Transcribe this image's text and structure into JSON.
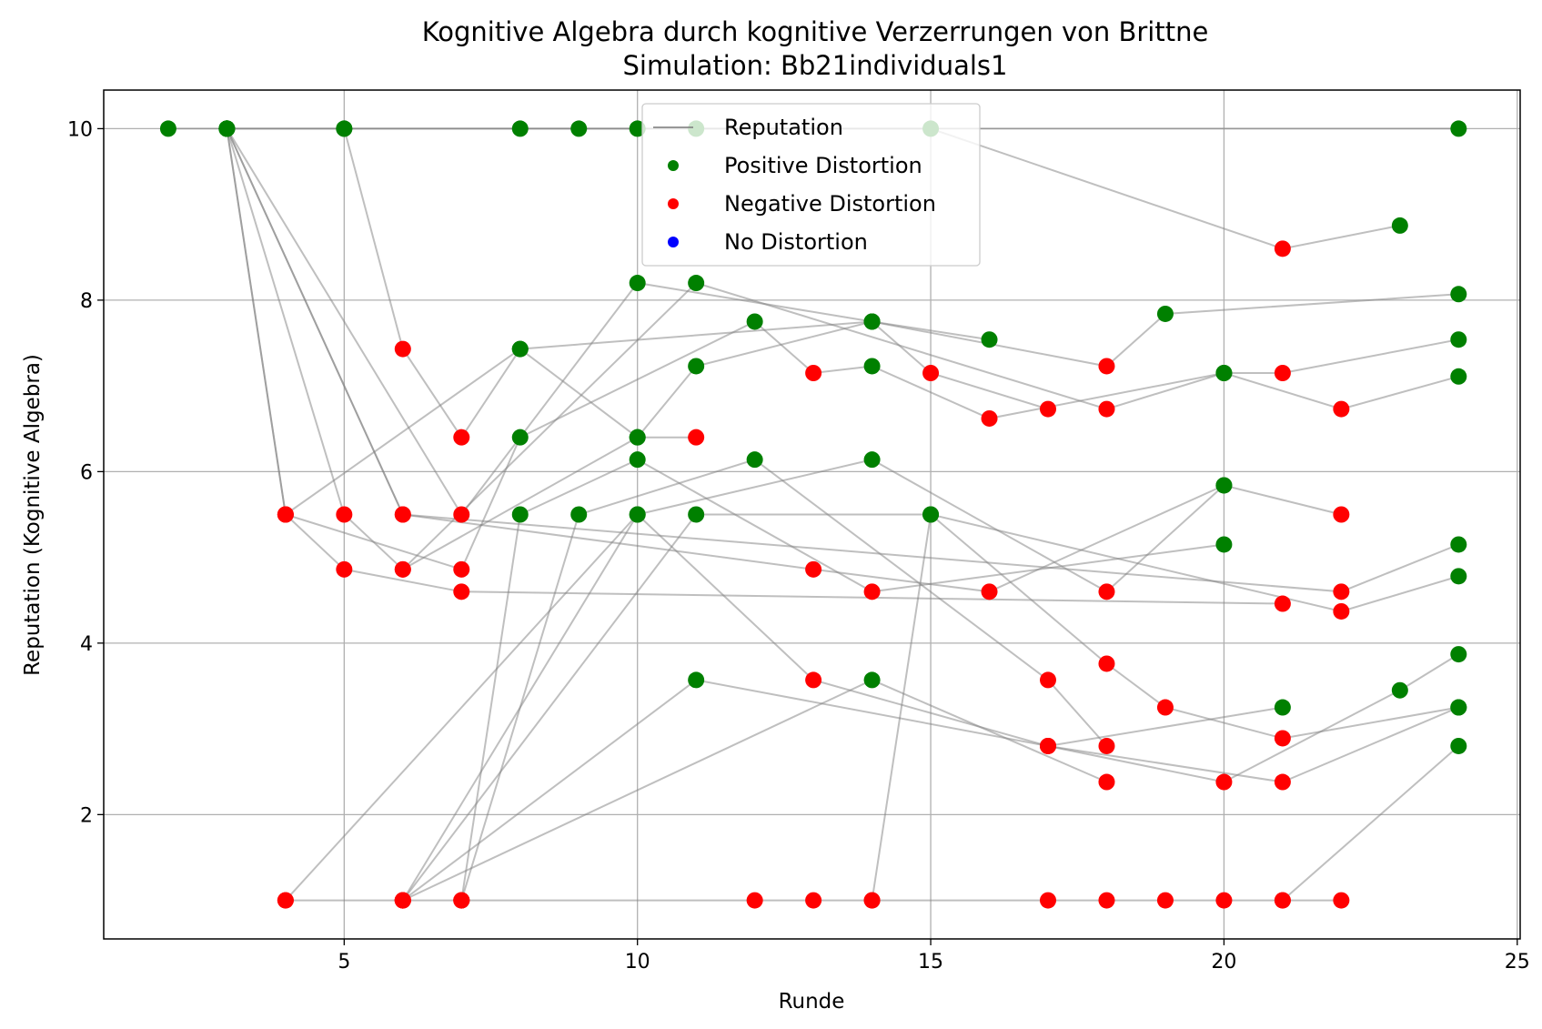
{
  "chart_data": {
    "type": "scatter",
    "title": "Kognitive Algebra durch kognitive Verzerrungen von Brittne",
    "subtitle": "Simulation: Bb21individuals1",
    "xlabel": "Runde",
    "ylabel": "Reputation (Kognitive Algebra)",
    "xlim": [
      0.9,
      25.05
    ],
    "ylim": [
      0.55,
      10.45
    ],
    "xticks": [
      5,
      10,
      15,
      20,
      25
    ],
    "yticks": [
      2,
      4,
      6,
      8,
      10
    ],
    "xtick_labels": [
      "5",
      "10",
      "15",
      "20",
      "25"
    ],
    "ytick_labels": [
      "2",
      "4",
      "6",
      "8",
      "10"
    ],
    "grid": true,
    "legend_position": "upper-center",
    "legend": [
      {
        "label": "Reputation",
        "kind": "line",
        "color": "#808080"
      },
      {
        "label": "Positive Distortion",
        "kind": "marker",
        "color": "#008000"
      },
      {
        "label": "Negative Distortion",
        "kind": "marker",
        "color": "#ff0000"
      },
      {
        "label": "No Distortion",
        "kind": "marker",
        "color": "#0000ff"
      }
    ],
    "colors": {
      "positive": "#008000",
      "negative": "#ff0000",
      "none": "#0000ff",
      "line": "#808080"
    },
    "series": [
      {
        "points": [
          [
            2,
            10,
            "p"
          ],
          [
            3,
            10,
            "p"
          ],
          [
            24,
            10,
            "p"
          ]
        ]
      },
      {
        "points": [
          [
            3,
            10,
            "p"
          ],
          [
            5,
            10,
            "p"
          ],
          [
            8,
            10,
            "p"
          ],
          [
            9,
            10,
            "p"
          ],
          [
            10,
            10,
            "p"
          ],
          [
            11,
            10,
            "p"
          ],
          [
            15,
            10,
            "p"
          ],
          [
            21,
            8.6,
            "n"
          ],
          [
            23,
            8.87,
            "p"
          ]
        ]
      },
      {
        "points": [
          [
            3,
            10,
            "p"
          ],
          [
            4,
            5.5,
            "n"
          ],
          [
            8,
            7.43,
            "p"
          ],
          [
            14,
            7.75,
            "p"
          ],
          [
            15,
            7.15,
            "n"
          ],
          [
            17,
            6.73,
            "n"
          ]
        ]
      },
      {
        "points": [
          [
            3,
            10,
            "p"
          ],
          [
            4,
            5.5,
            "n"
          ],
          [
            5,
            4.86,
            "n"
          ],
          [
            7,
            4.6,
            "n"
          ],
          [
            21,
            4.46,
            "n"
          ]
        ]
      },
      {
        "points": [
          [
            3,
            10,
            "p"
          ],
          [
            6,
            5.5,
            "n"
          ],
          [
            13,
            4.86,
            "n"
          ],
          [
            16,
            4.6,
            "n"
          ],
          [
            20,
            5.84,
            "p"
          ],
          [
            22,
            5.5,
            "n"
          ]
        ]
      },
      {
        "points": [
          [
            3,
            10,
            "p"
          ],
          [
            5,
            5.5,
            "n"
          ],
          [
            6,
            4.86,
            "n"
          ],
          [
            10,
            6.4,
            "p"
          ],
          [
            11,
            7.23,
            "p"
          ],
          [
            14,
            7.75,
            "p"
          ],
          [
            18,
            7.23,
            "n"
          ],
          [
            19,
            7.84,
            "p"
          ],
          [
            24,
            8.07,
            "p"
          ]
        ]
      },
      {
        "points": [
          [
            3,
            10,
            "p"
          ],
          [
            6,
            5.5,
            "n"
          ],
          [
            22,
            4.6,
            "n"
          ],
          [
            24,
            5.15,
            "p"
          ]
        ]
      },
      {
        "points": [
          [
            3,
            10,
            "p"
          ],
          [
            7,
            5.5,
            "n"
          ],
          [
            10,
            8.2,
            "p"
          ],
          [
            14,
            7.75,
            "p"
          ],
          [
            16,
            7.54,
            "p"
          ]
        ]
      },
      {
        "points": [
          [
            5,
            10,
            "p"
          ],
          [
            6,
            7.43,
            "n"
          ],
          [
            7,
            6.4,
            "n"
          ],
          [
            8,
            7.43,
            "p"
          ],
          [
            10,
            6.4,
            "p"
          ],
          [
            11,
            6.4,
            "n"
          ]
        ]
      },
      {
        "points": [
          [
            4,
            5.5,
            "n"
          ],
          [
            7,
            4.86,
            "n"
          ],
          [
            8,
            6.4,
            "p"
          ],
          [
            12,
            7.75,
            "p"
          ],
          [
            13,
            7.15,
            "n"
          ],
          [
            14,
            7.23,
            "p"
          ],
          [
            16,
            6.62,
            "n"
          ],
          [
            20,
            7.15,
            "p"
          ],
          [
            22,
            6.73,
            "n"
          ],
          [
            24,
            7.11,
            "p"
          ]
        ]
      },
      {
        "points": [
          [
            6,
            4.86,
            "n"
          ],
          [
            11,
            8.2,
            "p"
          ],
          [
            18,
            6.73,
            "n"
          ],
          [
            20,
            7.15,
            "p"
          ],
          [
            21,
            7.15,
            "n"
          ],
          [
            24,
            7.54,
            "p"
          ]
        ]
      },
      {
        "points": [
          [
            7,
            1.0,
            "n"
          ],
          [
            8,
            5.5,
            "p"
          ],
          [
            10,
            6.14,
            "p"
          ],
          [
            14,
            4.6,
            "n"
          ],
          [
            20,
            5.15,
            "p"
          ]
        ]
      },
      {
        "points": [
          [
            7,
            1.0,
            "n"
          ],
          [
            9,
            5.5,
            "p"
          ],
          [
            12,
            6.14,
            "p"
          ],
          [
            17,
            3.57,
            "n"
          ],
          [
            18,
            2.8,
            "n"
          ]
        ]
      },
      {
        "points": [
          [
            4,
            1.0,
            "n"
          ],
          [
            10,
            5.5,
            "p"
          ],
          [
            13,
            3.57,
            "n"
          ],
          [
            17,
            2.8,
            "n"
          ],
          [
            21,
            2.38,
            "n"
          ],
          [
            24,
            3.25,
            "p"
          ]
        ]
      },
      {
        "points": [
          [
            6,
            1.0,
            "n"
          ],
          [
            10,
            5.5,
            "p"
          ],
          [
            14,
            6.14,
            "p"
          ],
          [
            18,
            4.6,
            "n"
          ],
          [
            20,
            5.84,
            "p"
          ]
        ]
      },
      {
        "points": [
          [
            6,
            1.0,
            "n"
          ],
          [
            11,
            5.5,
            "p"
          ],
          [
            15,
            5.5,
            "p"
          ],
          [
            22,
            4.37,
            "n"
          ],
          [
            24,
            4.78,
            "p"
          ]
        ]
      },
      {
        "points": [
          [
            6,
            1.0,
            "n"
          ],
          [
            11,
            3.57,
            "p"
          ],
          [
            17,
            2.8,
            "n"
          ],
          [
            21,
            3.25,
            "p"
          ]
        ]
      },
      {
        "points": [
          [
            6,
            1.0,
            "n"
          ],
          [
            14,
            3.57,
            "p"
          ],
          [
            18,
            2.38,
            "n"
          ]
        ]
      },
      {
        "points": [
          [
            4,
            1.0,
            "n"
          ],
          [
            6,
            1.0,
            "n"
          ],
          [
            7,
            1.0,
            "n"
          ],
          [
            12,
            1.0,
            "n"
          ],
          [
            13,
            1.0,
            "n"
          ],
          [
            14,
            1.0,
            "n"
          ],
          [
            17,
            1.0,
            "n"
          ],
          [
            18,
            1.0,
            "n"
          ],
          [
            19,
            1.0,
            "n"
          ],
          [
            20,
            1.0,
            "n"
          ],
          [
            21,
            1.0,
            "n"
          ],
          [
            22,
            1.0,
            "n"
          ]
        ]
      },
      {
        "points": [
          [
            14,
            1.0,
            "n"
          ],
          [
            15,
            5.5,
            "p"
          ],
          [
            18,
            3.76,
            "n"
          ],
          [
            19,
            3.25,
            "n"
          ],
          [
            21,
            2.89,
            "n"
          ],
          [
            24,
            3.25,
            "p"
          ]
        ]
      },
      {
        "points": [
          [
            17,
            2.8,
            "n"
          ],
          [
            20,
            2.38,
            "n"
          ],
          [
            23,
            3.45,
            "p"
          ],
          [
            24,
            3.87,
            "p"
          ]
        ]
      },
      {
        "points": [
          [
            21,
            1.0,
            "n"
          ],
          [
            24,
            2.8,
            "p"
          ]
        ]
      }
    ]
  }
}
